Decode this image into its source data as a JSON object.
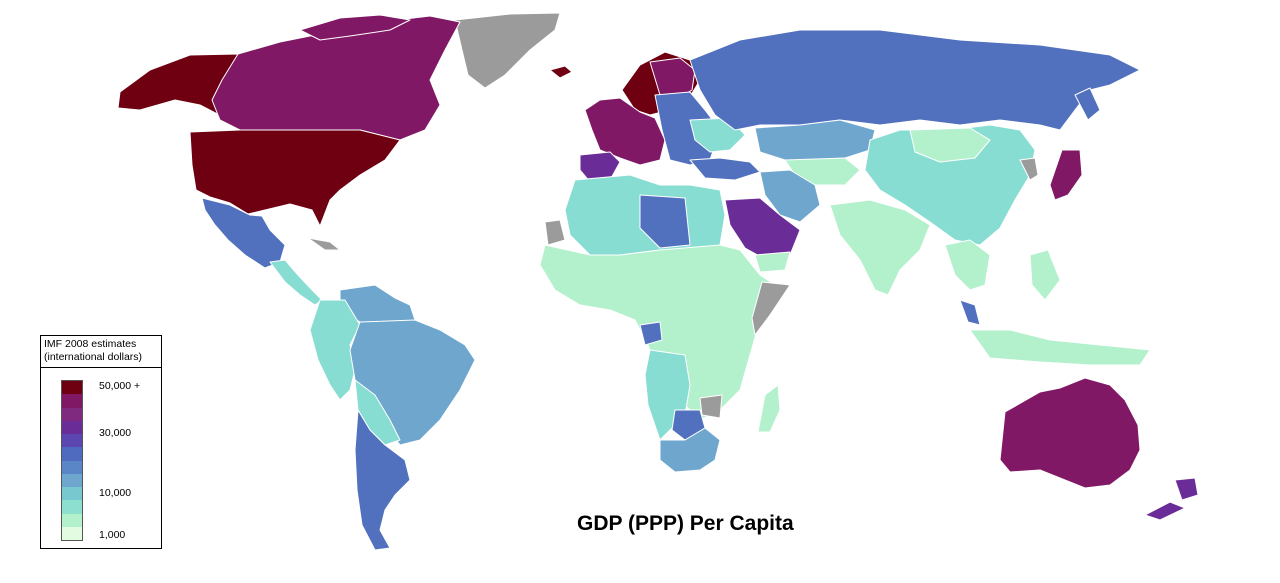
{
  "map": {
    "title": "GDP (PPP) Per Capita",
    "legend": {
      "heading_line1": "IMF 2008 estimates",
      "heading_line2": "(international dollars)",
      "ticks": [
        "50,000 +",
        "30,000",
        "10,000",
        "1,000"
      ],
      "scale_colors": [
        "#6e0012",
        "#801865",
        "#7f2a7e",
        "#6a2c96",
        "#5c46b0",
        "#4f6bc0",
        "#5a85c6",
        "#6ea6cd",
        "#78c9cf",
        "#8de0cf",
        "#b3f0cc",
        "#e3fbe0"
      ]
    },
    "colors": {
      "ocean": "#ffffff",
      "no_data": "#9b9b9b",
      "tier_50k_plus": "#6e0012",
      "tier_40k": "#801865",
      "tier_30k": "#6a2c96",
      "tier_20k": "#5170be",
      "tier_10k": "#6ea6cd",
      "tier_5k": "#88ddd3",
      "tier_1k": "#b3f0cc"
    }
  }
}
